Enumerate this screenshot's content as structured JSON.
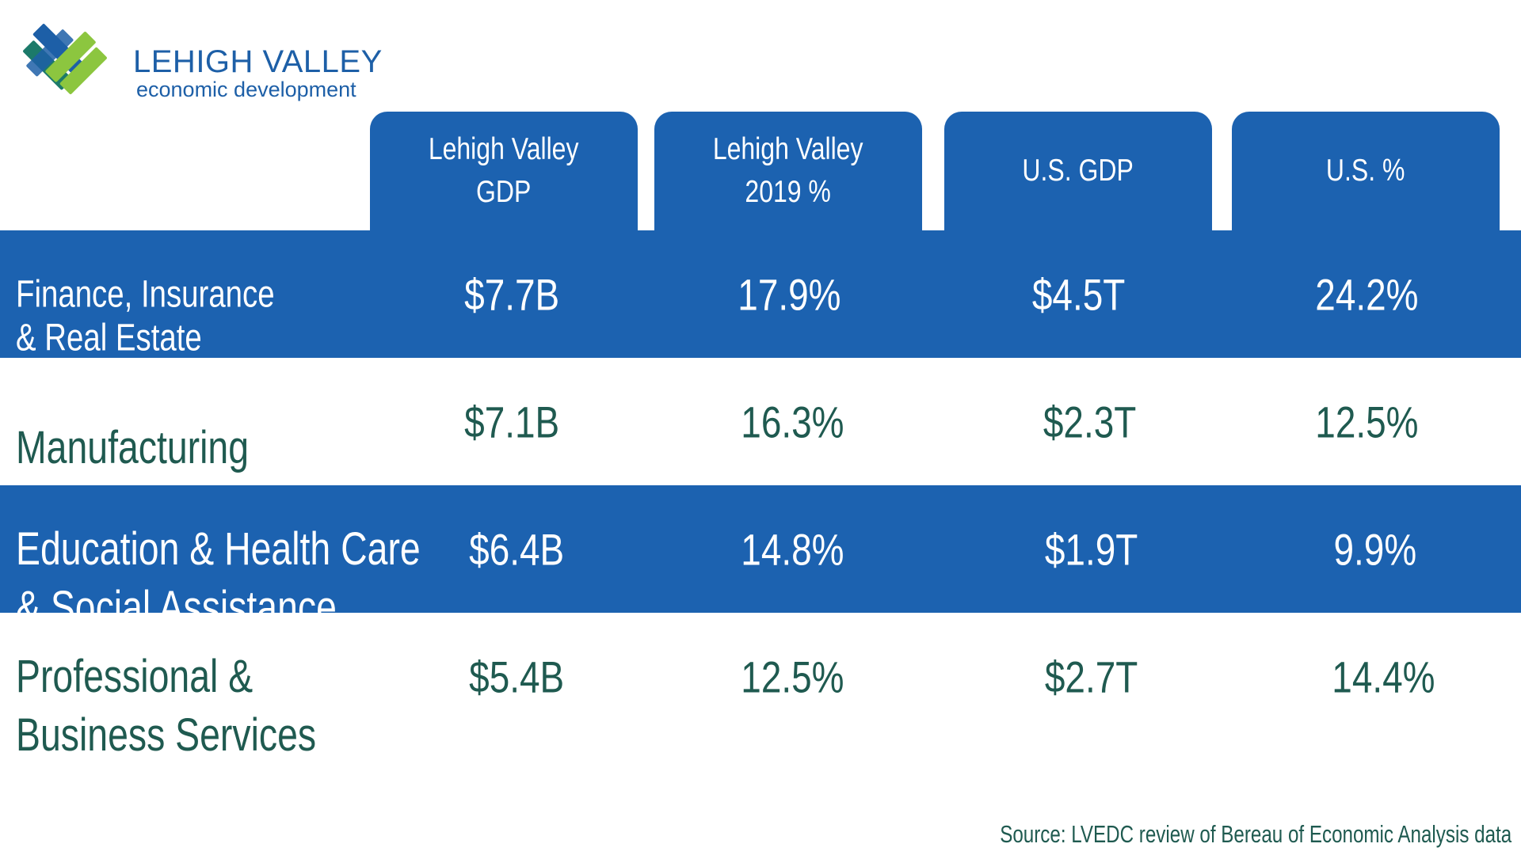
{
  "logo": {
    "title": "LEHIGH VALLEY",
    "subtitle": "economic development",
    "colors": {
      "blue": "#1d5fa7",
      "green": "#8cc63f",
      "teal": "#1c7a6a"
    }
  },
  "colors": {
    "header_blue": "#1c62b0",
    "row_blue": "#1c62b0",
    "text_dark_green": "#1f5a50",
    "text_white": "#ffffff"
  },
  "chart_data": {
    "type": "table",
    "columns": [
      "Lehigh Valley\nGDP",
      "Lehigh Valley\n2019 %",
      "U.S. GDP",
      "U.S. %"
    ],
    "rows": [
      {
        "label": "Finance, Insurance\n& Real Estate",
        "values": [
          "$7.7B",
          "17.9%",
          "$4.5T",
          "24.2%"
        ],
        "style": "blue"
      },
      {
        "label": "Manufacturing",
        "values": [
          "$7.1B",
          "16.3%",
          "$2.3T",
          "12.5%"
        ],
        "style": "white"
      },
      {
        "label": "Education & Health Care\n& Social Assistance",
        "values": [
          "$6.4B",
          "14.8%",
          "$1.9T",
          "9.9%"
        ],
        "style": "blue"
      },
      {
        "label": "Professional &\nBusiness Services",
        "values": [
          "$5.4B",
          "12.5%",
          "$2.7T",
          "14.4%"
        ],
        "style": "white"
      }
    ],
    "source": "Source: LVEDC review of Bereau of Economic Analysis data"
  }
}
